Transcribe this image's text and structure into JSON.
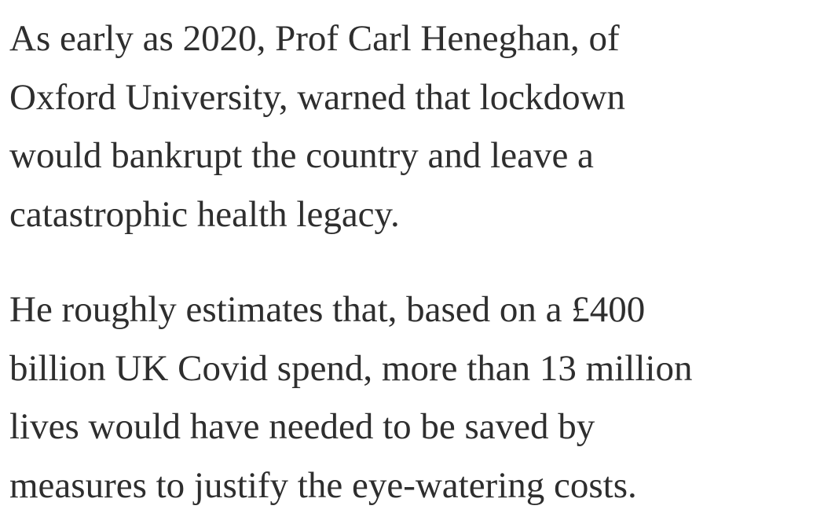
{
  "paragraphs": [
    {
      "lines": [
        "As early as 2020, Prof Carl Heneghan, of",
        "Oxford University, warned that lockdown",
        "would bankrupt the country and leave a",
        "catastrophic health legacy."
      ]
    },
    {
      "lines": [
        "He roughly estimates that, based on a £400",
        "billion UK Covid spend, more than 13 million",
        "lives would have needed to be saved by",
        "measures to justify the eye-watering costs."
      ]
    }
  ]
}
